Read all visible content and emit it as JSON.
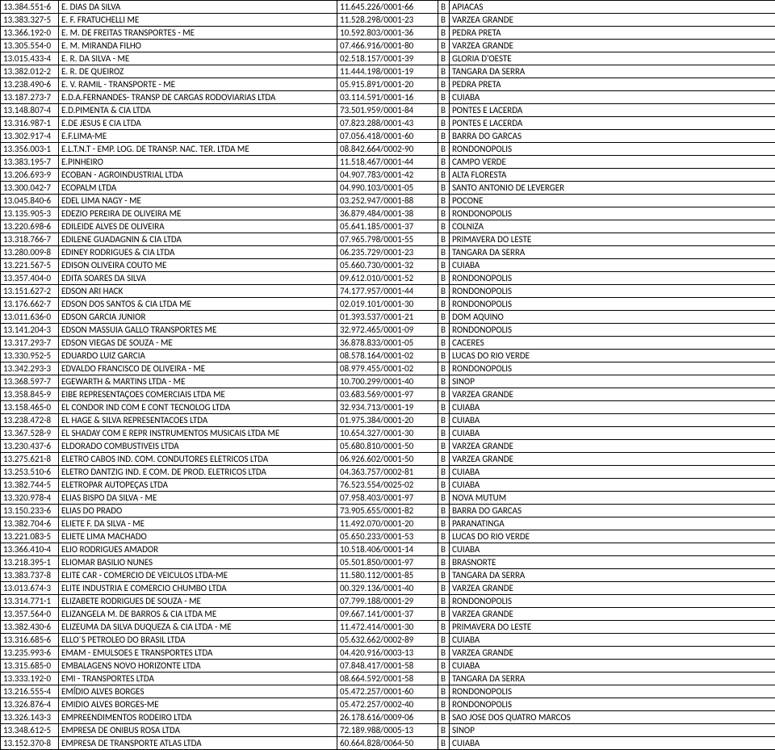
{
  "rows": [
    {
      "id": "13.384.551-6",
      "name": "E. DIAS DA SILVA",
      "cnpj": "11.645.226/0001-66",
      "b": "B",
      "city": "APIACAS"
    },
    {
      "id": "13.383.327-5",
      "name": "E. F. FRATUCHELLI  ME",
      "cnpj": "11.528.298/0001-23",
      "b": "B",
      "city": "VARZEA GRANDE"
    },
    {
      "id": "13.366.192-0",
      "name": "E. M. DE FREITAS TRANSPORTES - ME",
      "cnpj": "10.592.803/0001-36",
      "b": "B",
      "city": "PEDRA PRETA"
    },
    {
      "id": "13.305.554-0",
      "name": "E. M. MIRANDA FILHO",
      "cnpj": "07.466.916/0001-80",
      "b": "B",
      "city": "VARZEA GRANDE"
    },
    {
      "id": "13.015.433-4",
      "name": "E. R. DA SILVA - ME",
      "cnpj": "02.518.157/0001-39",
      "b": "B",
      "city": "GLORIA D'OESTE"
    },
    {
      "id": "13.382.012-2",
      "name": "E. R. DE QUEIROZ",
      "cnpj": "11.444.198/0001-19",
      "b": "B",
      "city": "TANGARA DA SERRA"
    },
    {
      "id": "13.238.490-6",
      "name": "E. V. RAMIL - TRANSPORTE - ME",
      "cnpj": "05.915.891/0001-20",
      "b": "B",
      "city": "PEDRA PRETA"
    },
    {
      "id": "13.187.273-7",
      "name": "E.D.A.FERNANDES- TRANSP DE CARGAS RODOVIARIAS LTDA",
      "cnpj": "03.114.591/0001-16",
      "b": "B",
      "city": "CUIABA"
    },
    {
      "id": "13.148.807-4",
      "name": "E.D.PIMENTA & CIA LTDA",
      "cnpj": "73.501.959/0001-84",
      "b": "B",
      "city": "PONTES E LACERDA"
    },
    {
      "id": "13.316.987-1",
      "name": "E.DE JESUS E CIA LTDA",
      "cnpj": "07.823.288/0001-43",
      "b": "B",
      "city": "PONTES E LACERDA"
    },
    {
      "id": "13.302.917-4",
      "name": "E.F.LIMA-ME",
      "cnpj": "07.056.418/0001-60",
      "b": "B",
      "city": "BARRA DO GARCAS"
    },
    {
      "id": "13.356.003-1",
      "name": "E.L.T.N.T - EMP. LOG. DE TRANSP. NAC. TER. LTDA ME",
      "cnpj": "08.842.664/0002-90",
      "b": "B",
      "city": "RONDONOPOLIS"
    },
    {
      "id": "13.383.195-7",
      "name": "E.PINHEIRO",
      "cnpj": "11.518.467/0001-44",
      "b": "B",
      "city": "CAMPO VERDE"
    },
    {
      "id": "13.206.693-9",
      "name": "ECOBAN - AGROINDUSTRIAL LTDA",
      "cnpj": "04.907.783/0001-42",
      "b": "B",
      "city": "ALTA FLORESTA"
    },
    {
      "id": "13.300.042-7",
      "name": "ECOPALM LTDA",
      "cnpj": "04.990.103/0001-05",
      "b": "B",
      "city": "SANTO ANTONIO DE LEVERGER"
    },
    {
      "id": "13.045.840-6",
      "name": "EDEL LIMA NAGY - ME",
      "cnpj": "03.252.947/0001-88",
      "b": "B",
      "city": "POCONE"
    },
    {
      "id": "13.135.905-3",
      "name": "EDEZIO PEREIRA DE OLIVEIRA ME",
      "cnpj": "36.879.484/0001-38",
      "b": "B",
      "city": "RONDONOPOLIS"
    },
    {
      "id": "13.220.698-6",
      "name": "EDILEIDE ALVES DE OLIVEIRA",
      "cnpj": "05.641.185/0001-37",
      "b": "B",
      "city": "COLNIZA"
    },
    {
      "id": "13.318.766-7",
      "name": "EDILENE GUADAGNIN & CIA LTDA",
      "cnpj": "07.965.798/0001-55",
      "b": "B",
      "city": "PRIMAVERA DO LESTE"
    },
    {
      "id": "13.280.009-8",
      "name": "EDINEY RODRIGUES & CIA LTDA",
      "cnpj": "06.235.729/0001-23",
      "b": "B",
      "city": "TANGARA DA SERRA"
    },
    {
      "id": "13.221.567-5",
      "name": "EDISON OLIVEIRA COUTO ME",
      "cnpj": "05.660.730/0001-32",
      "b": "B",
      "city": "CUIABA"
    },
    {
      "id": "13.357.404-0",
      "name": "EDITA SOARES DA SILVA",
      "cnpj": "09.612.010/0001-52",
      "b": "B",
      "city": "RONDONOPOLIS"
    },
    {
      "id": "13.151.627-2",
      "name": "EDSON ARI HACK",
      "cnpj": "74.177.957/0001-44",
      "b": "B",
      "city": "RONDONOPOLIS"
    },
    {
      "id": "13.176.662-7",
      "name": "EDSON DOS SANTOS & CIA LTDA ME",
      "cnpj": "02.019.101/0001-30",
      "b": "B",
      "city": "RONDONOPOLIS"
    },
    {
      "id": "13.011.636-0",
      "name": "EDSON GARCIA JUNIOR",
      "cnpj": "01.393.537/0001-21",
      "b": "B",
      "city": "DOM AQUINO"
    },
    {
      "id": "13.141.204-3",
      "name": "EDSON MASSUIA GALLO TRANSPORTES ME",
      "cnpj": "32.972.465/0001-09",
      "b": "B",
      "city": "RONDONOPOLIS"
    },
    {
      "id": "13.317.293-7",
      "name": "EDSON VIEGAS DE SOUZA - ME",
      "cnpj": "36.878.833/0001-05",
      "b": "B",
      "city": "CACERES"
    },
    {
      "id": "13.330.952-5",
      "name": "EDUARDO LUIZ GARCIA",
      "cnpj": "08.578.164/0001-02",
      "b": "B",
      "city": "LUCAS DO RIO VERDE"
    },
    {
      "id": "13.342.293-3",
      "name": "EDVALDO FRANCISCO DE OLIVEIRA - ME",
      "cnpj": "08.979.455/0001-02",
      "b": "B",
      "city": "RONDONOPOLIS"
    },
    {
      "id": "13.368.597-7",
      "name": "EGEWARTH & MARTINS LTDA - ME",
      "cnpj": "10.700.299/0001-40",
      "b": "B",
      "city": "SINOP"
    },
    {
      "id": "13.358.845-9",
      "name": "EIBE REPRESENTAÇOES COMERCIAIS LTDA ME",
      "cnpj": "03.683.569/0001-97",
      "b": "B",
      "city": "VARZEA GRANDE"
    },
    {
      "id": "13.158.465-0",
      "name": "EL CONDOR IND COM E CONT TECNOLOG LTDA",
      "cnpj": "32.934.713/0001-19",
      "b": "B",
      "city": "CUIABA"
    },
    {
      "id": "13.238.472-8",
      "name": "EL HAGE & SILVA REPRESENTACOES LTDA",
      "cnpj": "01.975.384/0001-20",
      "b": "B",
      "city": "CUIABA"
    },
    {
      "id": "13.367.528-9",
      "name": "EL SHADAY COM E REPR INSTRUMENTOS MUSICAIS LTDA ME",
      "cnpj": "10.654.327/0001-30",
      "b": "B",
      "city": "CUIABA"
    },
    {
      "id": "13.230.437-6",
      "name": "ELDORADO COMBUSTIVEIS LTDA",
      "cnpj": "05.680.810/0001-50",
      "b": "B",
      "city": "VARZEA GRANDE"
    },
    {
      "id": "13.275.621-8",
      "name": "ELETRO CABOS IND. COM. CONDUTORES ELETRICOS LTDA",
      "cnpj": "06.926.602/0001-50",
      "b": "B",
      "city": "VARZEA GRANDE"
    },
    {
      "id": "13.253.510-6",
      "name": "ELETRO DANTZIG IND. E COM. DE PROD. ELETRICOS LTDA",
      "cnpj": "04.363.757/0002-81",
      "b": "B",
      "city": "CUIABA"
    },
    {
      "id": "13.382.744-5",
      "name": "ELETROPAR AUTOPEÇAS LTDA",
      "cnpj": "76.523.554/0025-02",
      "b": "B",
      "city": "CUIABA"
    },
    {
      "id": "13.320.978-4",
      "name": "ELIAS BISPO DA SILVA - ME",
      "cnpj": "07.958.403/0001-97",
      "b": "B",
      "city": "NOVA MUTUM"
    },
    {
      "id": "13.150.233-6",
      "name": "ELIAS DO PRADO",
      "cnpj": "73.905.655/0001-82",
      "b": "B",
      "city": "BARRA DO GARCAS"
    },
    {
      "id": "13.382.704-6",
      "name": "ELIETE F. DA SILVA - ME",
      "cnpj": "11.492.070/0001-20",
      "b": "B",
      "city": "PARANATINGA"
    },
    {
      "id": "13.221.083-5",
      "name": "ELIETE LIMA MACHADO",
      "cnpj": "05.650.233/0001-53",
      "b": "B",
      "city": "LUCAS DO RIO VERDE"
    },
    {
      "id": "13.366.410-4",
      "name": "ELIO RODRIGUES AMADOR",
      "cnpj": "10.518.406/0001-14",
      "b": "B",
      "city": "CUIABA"
    },
    {
      "id": "13.218.395-1",
      "name": "ELIOMAR BASILIO NUNES",
      "cnpj": "05.501.850/0001-97",
      "b": "B",
      "city": "BRASNORTE"
    },
    {
      "id": "13.383.737-8",
      "name": "ELITE CAR - COMERCIO DE VEICULOS LTDA-ME",
      "cnpj": "11.580.112/0001-85",
      "b": "B",
      "city": "TANGARA DA SERRA"
    },
    {
      "id": "13.013.674-3",
      "name": "ELITE INDUSTRIA E COMERCIO CHUMBO LTDA",
      "cnpj": "00.329.136/0001-40",
      "b": "B",
      "city": "VARZEA GRANDE"
    },
    {
      "id": "13.314.771-1",
      "name": "ELIZABETE RODRIGUES DE SOUZA - ME",
      "cnpj": "07.799.188/0001-29",
      "b": "B",
      "city": "RONDONOPOLIS"
    },
    {
      "id": "13.357.564-0",
      "name": "ELIZANGELA M. DE BARROS & CIA LTDA ME",
      "cnpj": "09.667.141/0001-37",
      "b": "B",
      "city": "VARZEA GRANDE"
    },
    {
      "id": "13.382.430-6",
      "name": "ELIZEUMA DA SILVA DUQUEZA & CIA LTDA - ME",
      "cnpj": "11.472.414/0001-30",
      "b": "B",
      "city": "PRIMAVERA DO LESTE"
    },
    {
      "id": "13.316.685-6",
      "name": "ELLO´S PETROLEO DO BRASIL LTDA",
      "cnpj": "05.632.662/0002-89",
      "b": "B",
      "city": "CUIABA"
    },
    {
      "id": "13.235.993-6",
      "name": "EMAM - EMULSOES E TRANSPORTES LTDA",
      "cnpj": "04.420.916/0003-13",
      "b": "B",
      "city": "VARZEA GRANDE"
    },
    {
      "id": "13.315.685-0",
      "name": "EMBALAGENS  NOVO HORIZONTE LTDA",
      "cnpj": "07.848.417/0001-58",
      "b": "B",
      "city": "CUIABA"
    },
    {
      "id": "13.333.192-0",
      "name": "EMI - TRANSPORTES LTDA",
      "cnpj": "08.664.592/0001-58",
      "b": "B",
      "city": "TANGARA DA SERRA"
    },
    {
      "id": "13.216.555-4",
      "name": "EMÍDIO ALVES BORGES",
      "cnpj": "05.472.257/0001-60",
      "b": "B",
      "city": "RONDONOPOLIS"
    },
    {
      "id": "13.326.876-4",
      "name": "EMIDIO ALVES BORGES-ME",
      "cnpj": "05.472.257/0002-40",
      "b": "B",
      "city": "RONDONOPOLIS"
    },
    {
      "id": "13.326.143-3",
      "name": "EMPREENDIMENTOS RODEIRO LTDA",
      "cnpj": "26.178.616/0009-06",
      "b": "B",
      "city": "SAO JOSE DOS QUATRO MARCOS"
    },
    {
      "id": "13.348.612-5",
      "name": "EMPRESA DE ONIBUS ROSA LTDA",
      "cnpj": "72.189.988/0005-13",
      "b": "B",
      "city": "SINOP"
    },
    {
      "id": "13.152.370-8",
      "name": "EMPRESA DE TRANSPORTE ATLAS LTDA",
      "cnpj": "60.664.828/0064-50",
      "b": "B",
      "city": "CUIABA"
    }
  ]
}
